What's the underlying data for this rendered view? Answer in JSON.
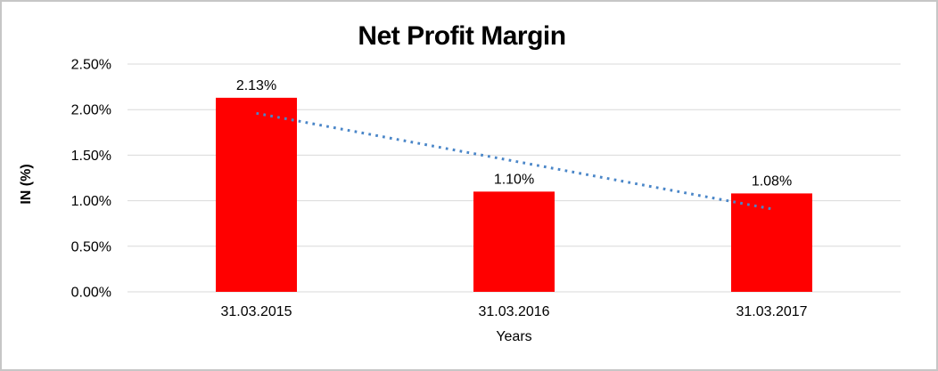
{
  "chart_data": {
    "type": "bar",
    "title": "Net Profit Margin",
    "xlabel": "Years",
    "ylabel": "IN (%)",
    "categories": [
      "31.03.2015",
      "31.03.2016",
      "31.03.2017"
    ],
    "values": [
      2.13,
      1.1,
      1.08
    ],
    "value_labels": [
      "2.13%",
      "1.10%",
      "1.08%"
    ],
    "y_ticks": [
      0.0,
      0.5,
      1.0,
      1.5,
      2.0,
      2.5
    ],
    "y_tick_labels": [
      "0.00%",
      "0.50%",
      "1.00%",
      "1.50%",
      "2.00%",
      "2.50%"
    ],
    "ylim": [
      0,
      2.5
    ],
    "grid": true,
    "legend": false,
    "trendline": {
      "type": "linear",
      "style": "dotted",
      "start_value": 1.96,
      "end_value": 0.91
    }
  },
  "colors": {
    "bar": "#FF0000",
    "trendline": "#4A86C8",
    "gridline": "#D9D9D9",
    "text": "#000000",
    "border": "#C6C6C6",
    "background": "#FFFFFF"
  }
}
